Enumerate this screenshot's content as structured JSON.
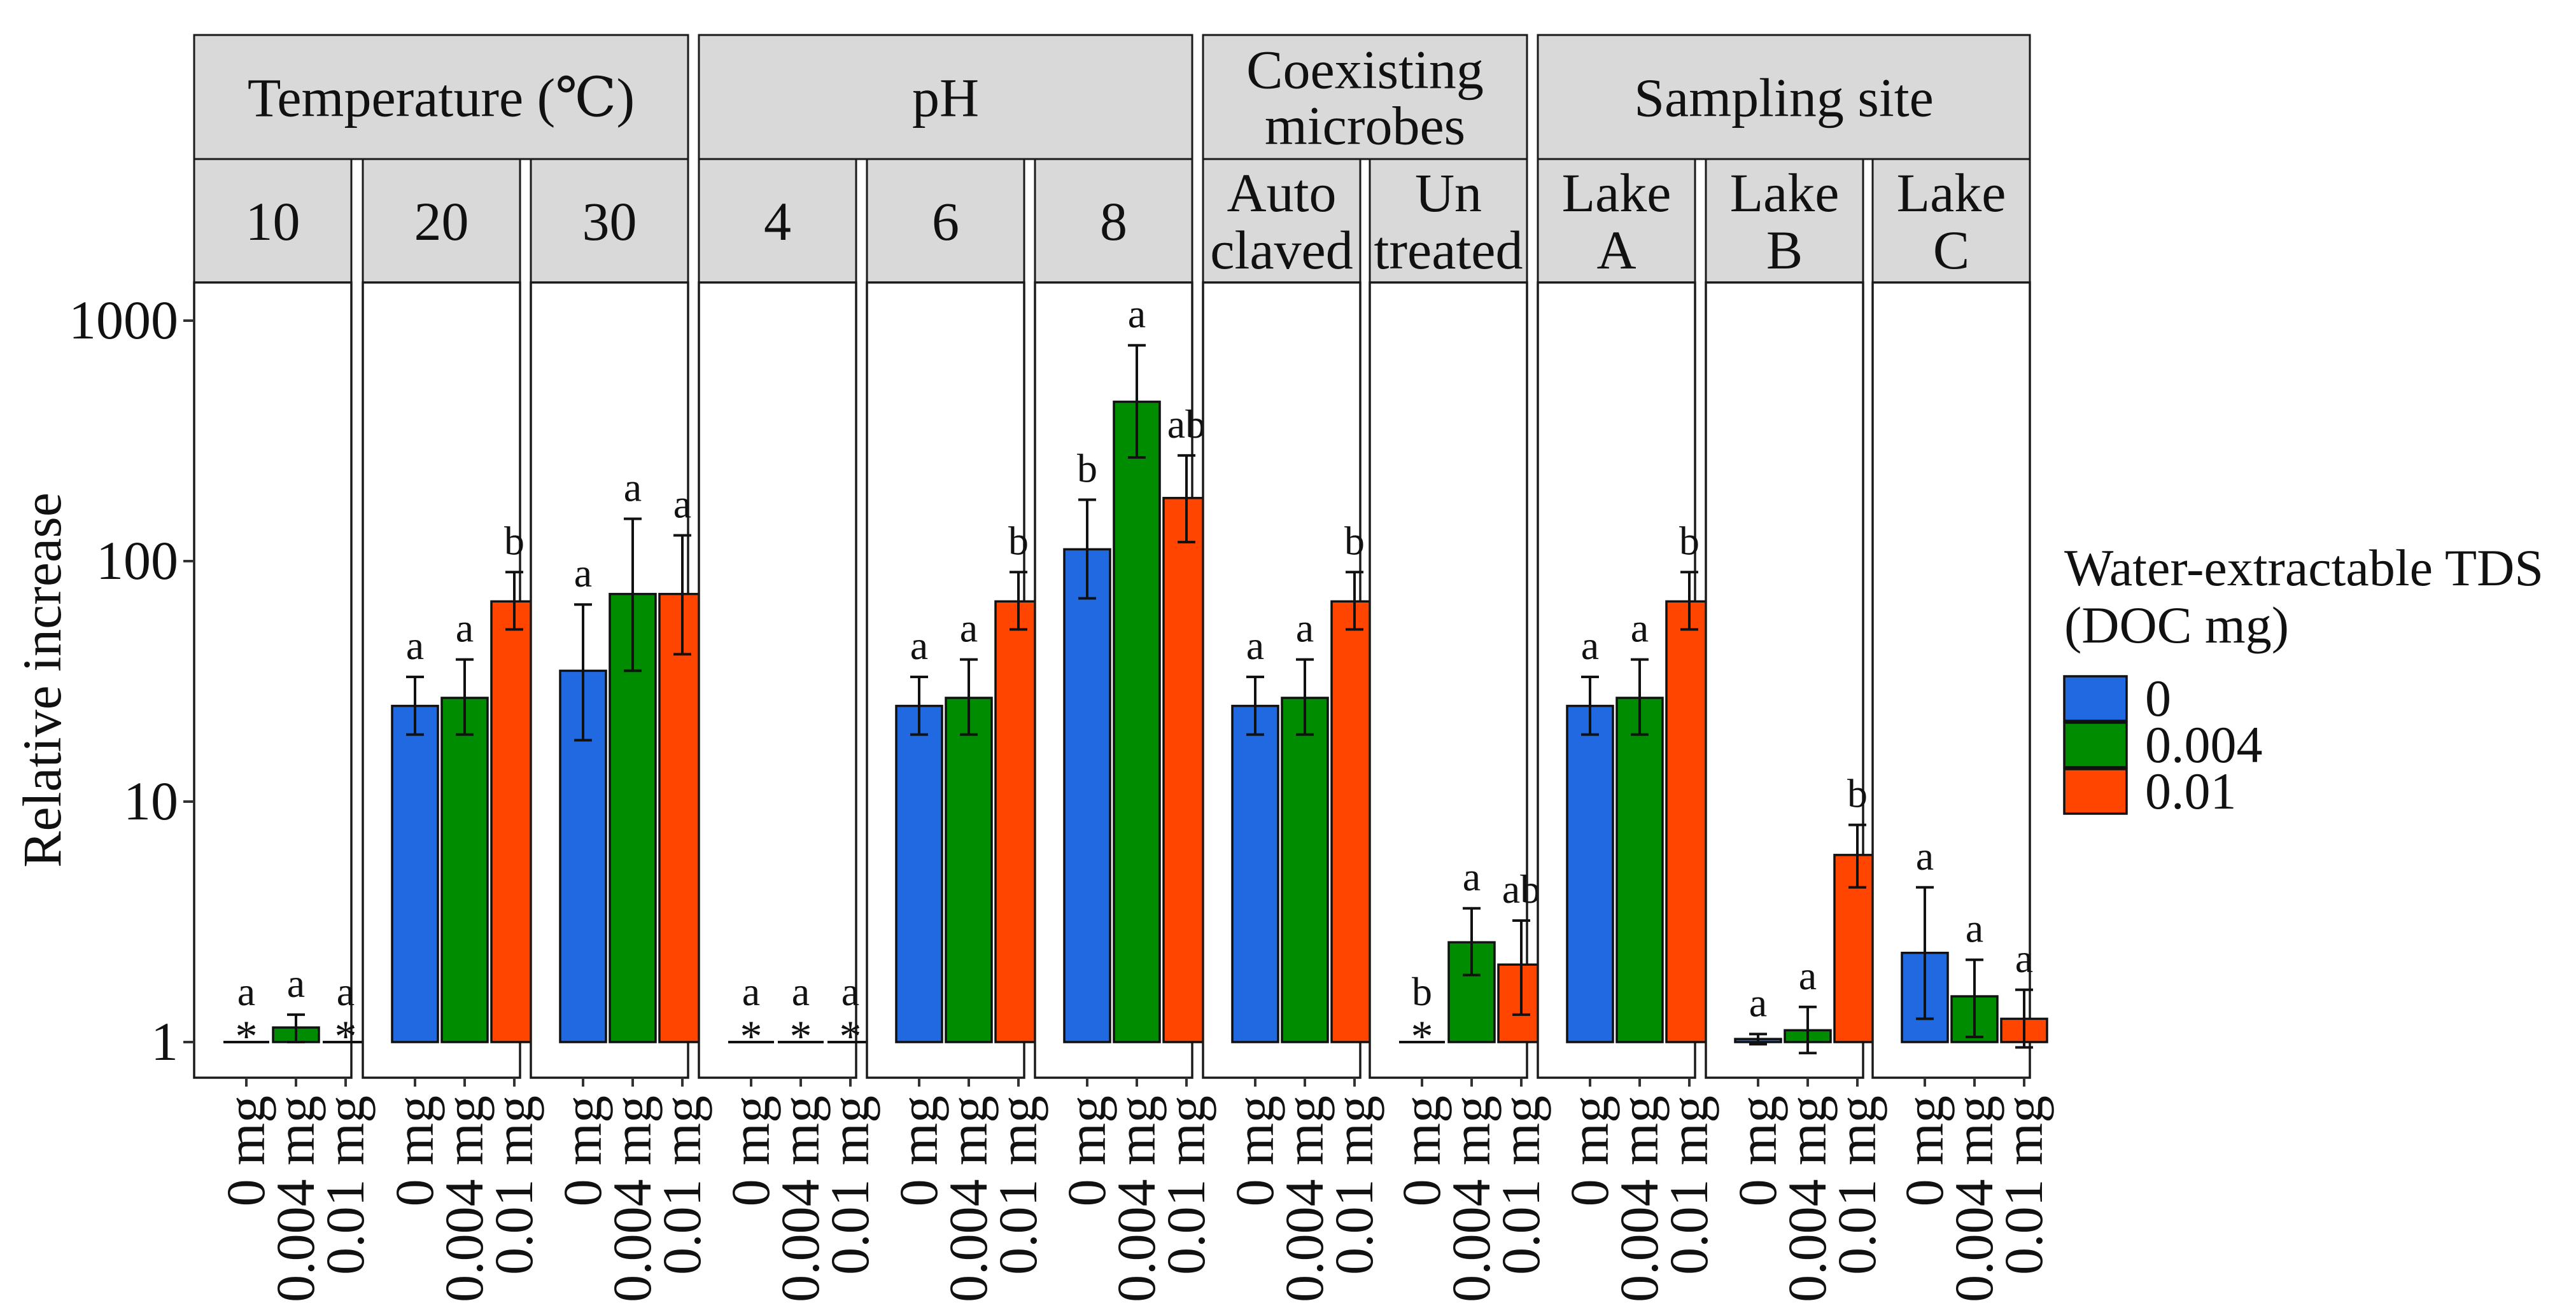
{
  "chart_data": {
    "type": "bar",
    "ylabel": "Relative increase",
    "yscale": "log",
    "ylim": [
      0.85,
      1500
    ],
    "yticks": [
      1,
      10,
      100,
      1000
    ],
    "ytick_labels": [
      "1",
      "10",
      "100",
      "1000"
    ],
    "categories": [
      "0 mg",
      "0.004 mg",
      "0.01 mg"
    ],
    "legend": {
      "title_lines": [
        "Water-extractable TDS",
        "(DOC mg)"
      ],
      "position": "right",
      "entries": [
        {
          "label": "0",
          "color": "#2169E1"
        },
        {
          "label": "0.004",
          "color": "#008C00"
        },
        {
          "label": "0.01",
          "color": "#FF4500"
        }
      ]
    },
    "groups": [
      {
        "label_lines": [
          "Temperature (℃)"
        ],
        "panels": [
          0,
          1,
          2
        ]
      },
      {
        "label_lines": [
          "pH"
        ],
        "panels": [
          3,
          4,
          5
        ]
      },
      {
        "label_lines": [
          "Coexisting",
          "microbes"
        ],
        "panels": [
          6,
          7
        ]
      },
      {
        "label_lines": [
          "Sampling site"
        ],
        "panels": [
          8,
          9,
          10
        ]
      }
    ],
    "panels": [
      {
        "label_lines": [
          "10"
        ],
        "bars": [
          {
            "value": 1,
            "err": null,
            "sig": "a",
            "star": true
          },
          {
            "value": 1.15,
            "err": [
              1.0,
              1.3
            ],
            "sig": "a",
            "star": false
          },
          {
            "value": 1,
            "err": null,
            "sig": "a",
            "star": true
          }
        ]
      },
      {
        "label_lines": [
          "20"
        ],
        "bars": [
          {
            "value": 25,
            "err": [
              19,
              33
            ],
            "sig": "a",
            "star": false
          },
          {
            "value": 27,
            "err": [
              19,
              39
            ],
            "sig": "a",
            "star": false
          },
          {
            "value": 68,
            "err": [
              52,
              90
            ],
            "sig": "b",
            "star": false
          }
        ]
      },
      {
        "label_lines": [
          "30"
        ],
        "bars": [
          {
            "value": 35,
            "err": [
              18,
              66
            ],
            "sig": "a",
            "star": false
          },
          {
            "value": 73,
            "err": [
              35,
              150
            ],
            "sig": "a",
            "star": false
          },
          {
            "value": 73,
            "err": [
              41,
              128
            ],
            "sig": "a",
            "star": false
          }
        ]
      },
      {
        "label_lines": [
          "4"
        ],
        "bars": [
          {
            "value": 1,
            "err": null,
            "sig": "a",
            "star": true
          },
          {
            "value": 1,
            "err": null,
            "sig": "a",
            "star": true
          },
          {
            "value": 1,
            "err": null,
            "sig": "a",
            "star": true
          }
        ]
      },
      {
        "label_lines": [
          "6"
        ],
        "bars": [
          {
            "value": 25,
            "err": [
              19,
              33
            ],
            "sig": "a",
            "star": false
          },
          {
            "value": 27,
            "err": [
              19,
              39
            ],
            "sig": "a",
            "star": false
          },
          {
            "value": 68,
            "err": [
              52,
              90
            ],
            "sig": "b",
            "star": false
          }
        ]
      },
      {
        "label_lines": [
          "8"
        ],
        "bars": [
          {
            "value": 112,
            "err": [
              70,
              180
            ],
            "sig": "b",
            "star": false
          },
          {
            "value": 460,
            "err": [
              270,
              790
            ],
            "sig": "a",
            "star": false
          },
          {
            "value": 183,
            "err": [
              120,
              275
            ],
            "sig": "ab",
            "star": false
          }
        ]
      },
      {
        "label_lines": [
          "Auto",
          "claved"
        ],
        "bars": [
          {
            "value": 25,
            "err": [
              19,
              33
            ],
            "sig": "a",
            "star": false
          },
          {
            "value": 27,
            "err": [
              19,
              39
            ],
            "sig": "a",
            "star": false
          },
          {
            "value": 68,
            "err": [
              52,
              90
            ],
            "sig": "b",
            "star": false
          }
        ]
      },
      {
        "label_lines": [
          "Un",
          "treated"
        ],
        "bars": [
          {
            "value": 1,
            "err": null,
            "sig": "b",
            "star": true
          },
          {
            "value": 2.6,
            "err": [
              1.9,
              3.6
            ],
            "sig": "a",
            "star": false
          },
          {
            "value": 2.1,
            "err": [
              1.3,
              3.2
            ],
            "sig": "ab",
            "star": false
          }
        ]
      },
      {
        "label_lines": [
          "Lake",
          "A"
        ],
        "bars": [
          {
            "value": 25,
            "err": [
              19,
              33
            ],
            "sig": "a",
            "star": false
          },
          {
            "value": 27,
            "err": [
              19,
              39
            ],
            "sig": "a",
            "star": false
          },
          {
            "value": 68,
            "err": [
              52,
              90
            ],
            "sig": "b",
            "star": false
          }
        ]
      },
      {
        "label_lines": [
          "Lake",
          "B"
        ],
        "bars": [
          {
            "value": 1.03,
            "err": [
              0.98,
              1.08
            ],
            "sig": "a",
            "star": false
          },
          {
            "value": 1.12,
            "err": [
              0.9,
              1.4
            ],
            "sig": "a",
            "star": false
          },
          {
            "value": 6.0,
            "err": [
              4.4,
              8.0
            ],
            "sig": "b",
            "star": false
          }
        ]
      },
      {
        "label_lines": [
          "Lake",
          "C"
        ],
        "bars": [
          {
            "value": 2.35,
            "err": [
              1.25,
              4.4
            ],
            "sig": "a",
            "star": false
          },
          {
            "value": 1.55,
            "err": [
              1.05,
              2.2
            ],
            "sig": "a",
            "star": false
          },
          {
            "value": 1.25,
            "err": [
              0.95,
              1.65
            ],
            "sig": "a",
            "star": false
          }
        ]
      }
    ]
  }
}
